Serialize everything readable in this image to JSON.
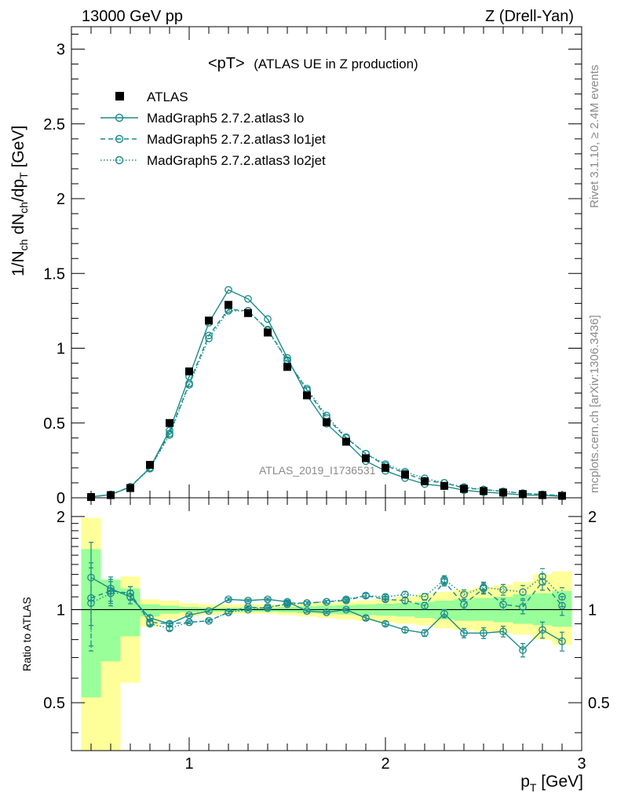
{
  "chart_data": {
    "type": "scatter",
    "header_left": "13000 GeV pp",
    "header_right": "Z (Drell-Yan)",
    "title_main": "<pT>",
    "title_sub": "(ATLAS UE in Z production)",
    "ylabel_main": "1/N",
    "ylabel_sub1": "ch",
    "ylabel_mid": " dN",
    "ylabel_sub2": "ch",
    "ylabel_mid2": "/dp",
    "ylabel_sub3": "T",
    "ylabel_unit": " [GeV]",
    "xlabel_main": "p",
    "xlabel_sub": "T",
    "xlabel_unit": " [GeV]",
    "ratio_ylabel": "Ratio to ATLAS",
    "side_label_top": "Rivet 3.1.10, ≥ 2.4M events",
    "side_label_bottom": "mcplots.cern.ch [arXiv:1306.3436]",
    "watermark": "ATLAS_2019_I1736531",
    "xlim": [
      0.4,
      3.0
    ],
    "ylim": [
      0,
      3.15
    ],
    "ratio_ylim": [
      0.35,
      2.3
    ],
    "x_ticks": [
      1,
      2,
      3
    ],
    "y_ticks": [
      0,
      0.5,
      1,
      1.5,
      2,
      2.5,
      3
    ],
    "y_tick_labels": [
      "0",
      "0.5",
      "1",
      "1.5",
      "2",
      "2.5",
      "3"
    ],
    "ratio_ticks": [
      0.5,
      1,
      2
    ],
    "ratio_tick_labels": [
      "0.5",
      "1",
      "2"
    ],
    "x_tick_labels": [
      "1",
      "2",
      "3"
    ],
    "legend_position": "top-left",
    "x": [
      0.5,
      0.6,
      0.7,
      0.8,
      0.9,
      1.0,
      1.1,
      1.2,
      1.3,
      1.4,
      1.5,
      1.6,
      1.7,
      1.8,
      1.9,
      2.0,
      2.1,
      2.2,
      2.3,
      2.4,
      2.5,
      2.6,
      2.7,
      2.8,
      2.9
    ],
    "ratio_band_edges": [
      0.45,
      0.55,
      0.65,
      0.75,
      0.85,
      0.95,
      1.05,
      1.15,
      1.25,
      1.35,
      1.45,
      1.55,
      1.65,
      1.75,
      1.85,
      1.95,
      2.05,
      2.15,
      2.25,
      2.35,
      2.45,
      2.55,
      2.65,
      2.75,
      2.85,
      2.95
    ],
    "data": {
      "name": "ATLAS",
      "values": [
        0.005,
        0.018,
        0.065,
        0.22,
        0.5,
        0.845,
        1.185,
        1.29,
        1.235,
        1.105,
        0.875,
        0.685,
        0.505,
        0.375,
        0.265,
        0.2,
        0.155,
        0.11,
        0.08,
        0.06,
        0.045,
        0.035,
        0.025,
        0.018,
        0.013
      ],
      "color": "#000000"
    },
    "series": [
      {
        "name": "MadGraph5 2.7.2.atlas3 lo",
        "style": "solid",
        "values": [
          0.007,
          0.021,
          0.072,
          0.2,
          0.45,
          0.81,
          1.17,
          1.39,
          1.33,
          1.195,
          0.935,
          0.685,
          0.495,
          0.375,
          0.245,
          0.18,
          0.132,
          0.092,
          0.077,
          0.051,
          0.038,
          0.03,
          0.019,
          0.016,
          0.01
        ],
        "ratio": [
          1.27,
          1.17,
          1.1,
          0.94,
          0.9,
          0.96,
          0.99,
          1.08,
          1.07,
          1.08,
          1.06,
          0.99,
          0.98,
          1.0,
          0.94,
          0.9,
          0.86,
          0.84,
          0.97,
          0.84,
          0.84,
          0.85,
          0.74,
          0.86,
          0.79
        ]
      },
      {
        "name": "MadGraph5 2.7.2.atlas3 lo1jet",
        "style": "dashed",
        "values": [
          0.0055,
          0.021,
          0.074,
          0.2,
          0.43,
          0.765,
          1.085,
          1.26,
          1.25,
          1.125,
          0.92,
          0.72,
          0.535,
          0.4,
          0.295,
          0.215,
          0.165,
          0.115,
          0.1,
          0.065,
          0.055,
          0.043,
          0.03,
          0.022,
          0.015
        ],
        "ratio": [
          1.09,
          1.15,
          1.13,
          0.91,
          0.9,
          0.91,
          0.92,
          0.98,
          1.02,
          1.01,
          1.05,
          1.05,
          1.06,
          1.07,
          1.11,
          1.08,
          1.07,
          1.03,
          1.23,
          1.04,
          1.17,
          1.04,
          1.02,
          1.23,
          1.03
        ]
      },
      {
        "name": "MadGraph5 2.7.2.atlas3 lo2jet",
        "style": "dotted",
        "values": [
          0.0052,
          0.022,
          0.072,
          0.195,
          0.42,
          0.755,
          1.065,
          1.25,
          1.25,
          1.12,
          0.915,
          0.73,
          0.55,
          0.405,
          0.295,
          0.225,
          0.175,
          0.13,
          0.1,
          0.072,
          0.055,
          0.043,
          0.031,
          0.023,
          0.015
        ],
        "ratio": [
          1.05,
          1.13,
          1.13,
          0.9,
          0.87,
          0.91,
          0.92,
          0.98,
          1.0,
          1.02,
          1.04,
          1.05,
          1.06,
          1.08,
          1.11,
          1.1,
          1.12,
          1.1,
          1.25,
          1.12,
          1.18,
          1.16,
          1.14,
          1.28,
          1.1
        ]
      }
    ],
    "ratio_band_yellow": [
      [
        0.3,
        1.98
      ],
      [
        0.3,
        1.25
      ],
      [
        0.58,
        1.28
      ],
      [
        0.88,
        1.08
      ],
      [
        0.93,
        1.07
      ],
      [
        0.95,
        1.05
      ],
      [
        0.96,
        1.04
      ],
      [
        0.97,
        1.04
      ],
      [
        0.97,
        1.04
      ],
      [
        0.97,
        1.04
      ],
      [
        0.96,
        1.04
      ],
      [
        0.95,
        1.05
      ],
      [
        0.94,
        1.05
      ],
      [
        0.93,
        1.06
      ],
      [
        0.92,
        1.07
      ],
      [
        0.91,
        1.08
      ],
      [
        0.9,
        1.1
      ],
      [
        0.89,
        1.12
      ],
      [
        0.87,
        1.14
      ],
      [
        0.86,
        1.16
      ],
      [
        0.85,
        1.18
      ],
      [
        0.84,
        1.2
      ],
      [
        0.83,
        1.23
      ],
      [
        0.8,
        1.3
      ],
      [
        0.77,
        1.33
      ]
    ],
    "ratio_band_green": [
      [
        0.52,
        1.57
      ],
      [
        0.68,
        1.25
      ],
      [
        0.82,
        1.17
      ],
      [
        0.95,
        1.04
      ],
      [
        0.97,
        1.03
      ],
      [
        0.98,
        1.02
      ],
      [
        0.985,
        1.015
      ],
      [
        0.985,
        1.015
      ],
      [
        0.985,
        1.015
      ],
      [
        0.985,
        1.015
      ],
      [
        0.98,
        1.02
      ],
      [
        0.975,
        1.025
      ],
      [
        0.97,
        1.03
      ],
      [
        0.965,
        1.035
      ],
      [
        0.96,
        1.04
      ],
      [
        0.955,
        1.045
      ],
      [
        0.95,
        1.05
      ],
      [
        0.94,
        1.06
      ],
      [
        0.93,
        1.07
      ],
      [
        0.92,
        1.08
      ],
      [
        0.92,
        1.09
      ],
      [
        0.91,
        1.1
      ],
      [
        0.9,
        1.12
      ],
      [
        0.89,
        1.13
      ],
      [
        0.88,
        1.15
      ]
    ],
    "ratio_errors": [
      0.3,
      0.09,
      0.05,
      0.02,
      0.015,
      0.01,
      0.01,
      0.01,
      0.01,
      0.01,
      0.01,
      0.01,
      0.01,
      0.01,
      0.015,
      0.015,
      0.02,
      0.025,
      0.03,
      0.035,
      0.04,
      0.04,
      0.05,
      0.06,
      0.07
    ],
    "colors": {
      "mc": "#1a8a8a",
      "band_yellow": "#ffff99",
      "band_green": "#99ff99",
      "frame": "#000000"
    }
  }
}
